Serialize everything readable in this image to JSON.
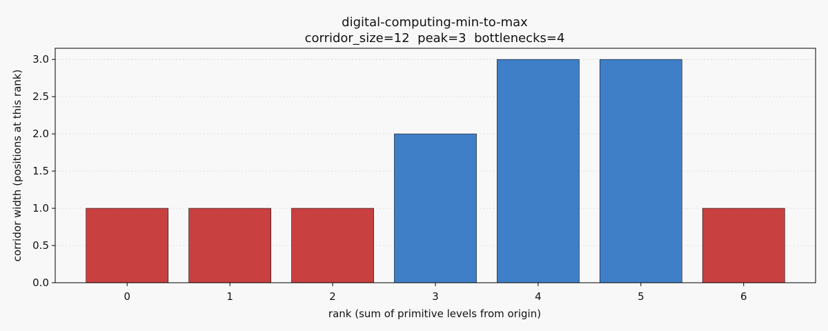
{
  "chart_data": {
    "type": "bar",
    "title": "digital-computing-min-to-max",
    "subtitle": "corridor_size=12  peak=3  bottlenecks=4",
    "xlabel": "rank (sum of primitive levels from origin)",
    "ylabel": "corridor width (positions at this rank)",
    "categories": [
      "0",
      "1",
      "2",
      "3",
      "4",
      "5",
      "6"
    ],
    "values": [
      1,
      1,
      1,
      2,
      3,
      3,
      1
    ],
    "bar_colors": [
      "#c84040",
      "#c84040",
      "#c84040",
      "#3f7fc8",
      "#3f7fc8",
      "#3f7fc8",
      "#c84040"
    ],
    "ylim": [
      0,
      3.15
    ],
    "yticks": [
      0.0,
      0.5,
      1.0,
      1.5,
      2.0,
      2.5,
      3.0
    ],
    "ytick_labels": [
      "0.0",
      "0.5",
      "1.0",
      "1.5",
      "2.0",
      "2.5",
      "3.0"
    ],
    "grid": true
  }
}
